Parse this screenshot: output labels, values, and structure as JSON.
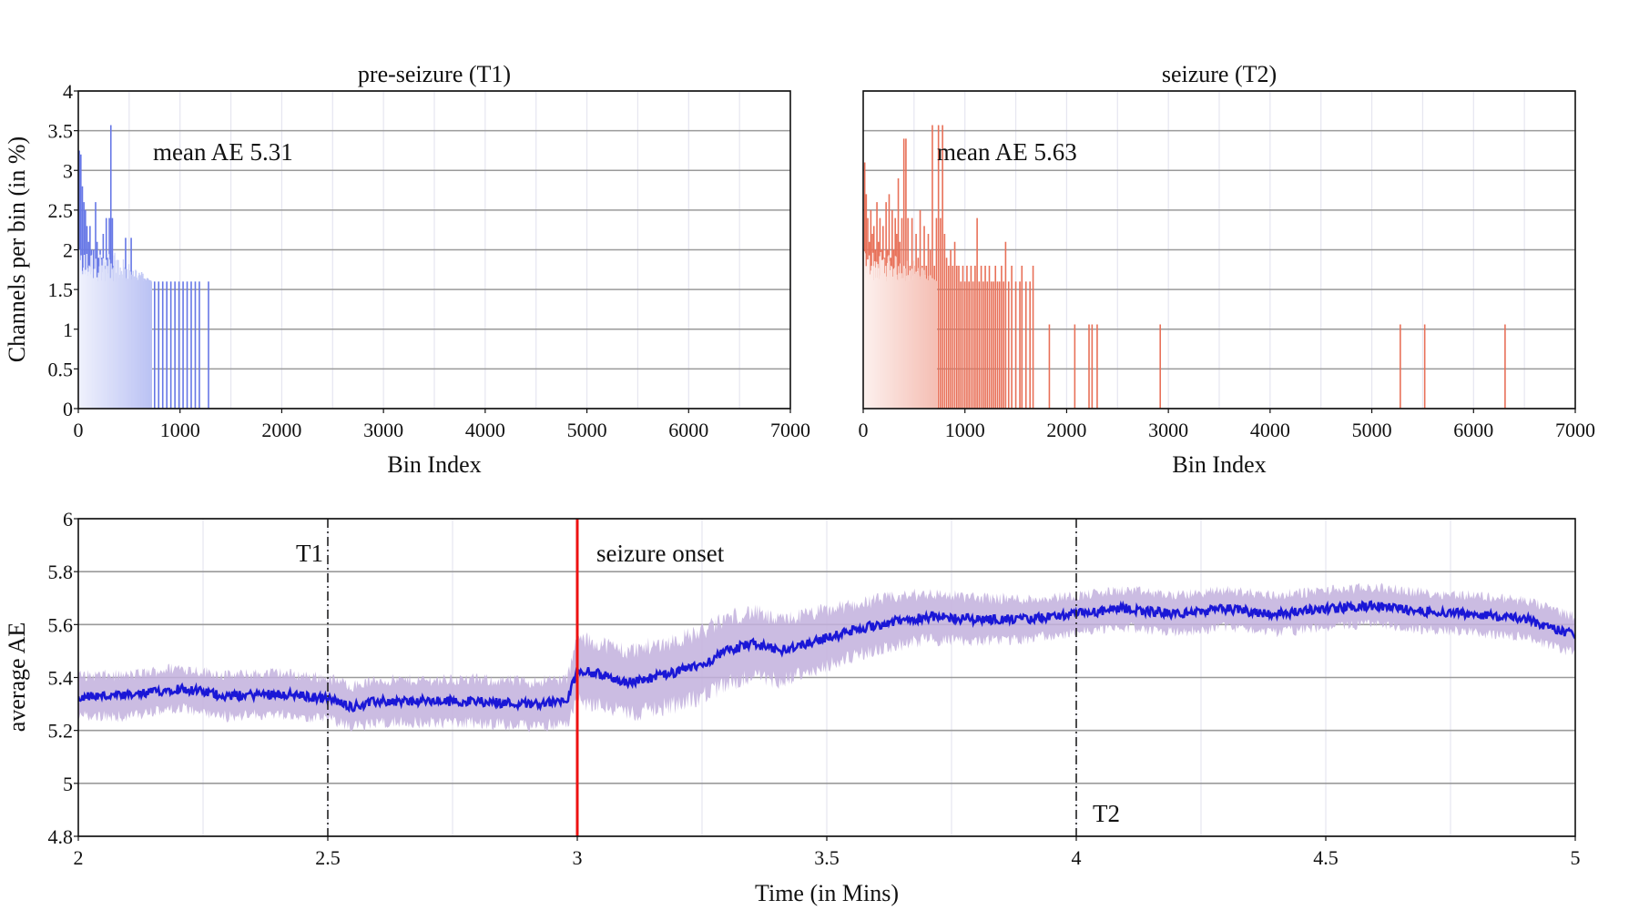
{
  "chart_data": [
    {
      "type": "bar",
      "title": "pre-seizure (T1)",
      "xlabel": "Bin Index",
      "ylabel": "Channels per bin (in %)",
      "xlim": [
        0,
        7000
      ],
      "ylim": [
        0,
        4
      ],
      "xticks": [
        0,
        1000,
        2000,
        3000,
        4000,
        5000,
        6000,
        7000
      ],
      "yticks": [
        0,
        0.5,
        1,
        1.5,
        2,
        2.5,
        3,
        3.5,
        4
      ],
      "annotation": "mean AE 5.31",
      "grid": true,
      "color": "#6677e6",
      "bins": [
        [
          10,
          3.25
        ],
        [
          25,
          3.2
        ],
        [
          40,
          2.8
        ],
        [
          55,
          2.6
        ],
        [
          70,
          2.5
        ],
        [
          85,
          2.3
        ],
        [
          100,
          2.1
        ],
        [
          115,
          2.3
        ],
        [
          130,
          2.0
        ],
        [
          150,
          2.0
        ],
        [
          170,
          2.6
        ],
        [
          185,
          2.1
        ],
        [
          200,
          1.9
        ],
        [
          215,
          2.0
        ],
        [
          230,
          1.9
        ],
        [
          245,
          2.2
        ],
        [
          260,
          1.8
        ],
        [
          275,
          2.4
        ],
        [
          290,
          1.9
        ],
        [
          305,
          2.4
        ],
        [
          320,
          3.57
        ],
        [
          335,
          2.4
        ],
        [
          350,
          1.8
        ],
        [
          370,
          1.7
        ],
        [
          390,
          1.7
        ],
        [
          410,
          1.6
        ],
        [
          430,
          1.6
        ],
        [
          450,
          1.6
        ],
        [
          465,
          2.15
        ],
        [
          480,
          1.6
        ],
        [
          500,
          1.6
        ],
        [
          520,
          2.15
        ],
        [
          540,
          1.6
        ],
        [
          560,
          1.6
        ],
        [
          580,
          1.6
        ],
        [
          600,
          1.6
        ],
        [
          620,
          1.6
        ],
        [
          650,
          1.6
        ],
        [
          680,
          1.6
        ],
        [
          710,
          1.6
        ],
        [
          750,
          1.6
        ],
        [
          790,
          1.6
        ],
        [
          830,
          1.6
        ],
        [
          870,
          1.6
        ],
        [
          910,
          1.6
        ],
        [
          950,
          1.6
        ],
        [
          990,
          1.6
        ],
        [
          1030,
          1.6
        ],
        [
          1070,
          1.6
        ],
        [
          1110,
          1.6
        ],
        [
          1150,
          1.6
        ],
        [
          1190,
          1.6
        ],
        [
          1280,
          1.6
        ]
      ]
    },
    {
      "type": "bar",
      "title": "seizure (T2)",
      "xlabel": "Bin Index",
      "xlim": [
        0,
        7000
      ],
      "ylim": [
        0,
        4
      ],
      "xticks": [
        0,
        1000,
        2000,
        3000,
        4000,
        5000,
        6000,
        7000
      ],
      "annotation": "mean AE 5.63",
      "grid": true,
      "color": "#e87058",
      "bins": [
        [
          15,
          3.1
        ],
        [
          30,
          2.7
        ],
        [
          45,
          2.4
        ],
        [
          60,
          2.1
        ],
        [
          75,
          2.5
        ],
        [
          90,
          2.2
        ],
        [
          105,
          2.3
        ],
        [
          120,
          2.0
        ],
        [
          135,
          2.6
        ],
        [
          150,
          2.1
        ],
        [
          165,
          2.4
        ],
        [
          180,
          2.0
        ],
        [
          195,
          2.3
        ],
        [
          210,
          1.9
        ],
        [
          225,
          2.6
        ],
        [
          240,
          2.0
        ],
        [
          255,
          2.7
        ],
        [
          270,
          1.9
        ],
        [
          285,
          2.5
        ],
        [
          300,
          2.0
        ],
        [
          315,
          2.4
        ],
        [
          330,
          2.2
        ],
        [
          345,
          2.9
        ],
        [
          360,
          2.1
        ],
        [
          380,
          2.4
        ],
        [
          400,
          3.4
        ],
        [
          420,
          3.4
        ],
        [
          440,
          2.4
        ],
        [
          460,
          1.8
        ],
        [
          480,
          2.4
        ],
        [
          500,
          1.8
        ],
        [
          520,
          2.2
        ],
        [
          540,
          1.9
        ],
        [
          560,
          2.5
        ],
        [
          580,
          1.8
        ],
        [
          600,
          2.3
        ],
        [
          620,
          1.8
        ],
        [
          640,
          2.2
        ],
        [
          660,
          2.0
        ],
        [
          680,
          3.57
        ],
        [
          700,
          1.8
        ],
        [
          720,
          2.4
        ],
        [
          740,
          3.57
        ],
        [
          760,
          2.4
        ],
        [
          780,
          3.57
        ],
        [
          800,
          2.2
        ],
        [
          820,
          1.9
        ],
        [
          840,
          1.8
        ],
        [
          860,
          2.0
        ],
        [
          880,
          1.8
        ],
        [
          900,
          2.1
        ],
        [
          920,
          1.8
        ],
        [
          940,
          1.8
        ],
        [
          960,
          1.6
        ],
        [
          980,
          1.8
        ],
        [
          1000,
          1.6
        ],
        [
          1020,
          1.8
        ],
        [
          1040,
          1.6
        ],
        [
          1060,
          1.8
        ],
        [
          1080,
          1.6
        ],
        [
          1100,
          1.8
        ],
        [
          1120,
          2.4
        ],
        [
          1140,
          1.6
        ],
        [
          1160,
          1.8
        ],
        [
          1180,
          1.6
        ],
        [
          1200,
          1.8
        ],
        [
          1220,
          1.6
        ],
        [
          1240,
          1.8
        ],
        [
          1260,
          1.6
        ],
        [
          1280,
          1.6
        ],
        [
          1300,
          1.8
        ],
        [
          1320,
          1.6
        ],
        [
          1340,
          1.6
        ],
        [
          1360,
          1.8
        ],
        [
          1380,
          1.6
        ],
        [
          1400,
          2.1
        ],
        [
          1430,
          1.6
        ],
        [
          1460,
          1.8
        ],
        [
          1500,
          1.6
        ],
        [
          1540,
          1.6
        ],
        [
          1560,
          1.8
        ],
        [
          1600,
          1.6
        ],
        [
          1640,
          1.6
        ],
        [
          1670,
          1.8
        ],
        [
          1830,
          1.06
        ],
        [
          2080,
          1.06
        ],
        [
          2220,
          1.06
        ],
        [
          2250,
          1.06
        ],
        [
          2300,
          1.06
        ],
        [
          2920,
          1.06
        ],
        [
          5280,
          1.06
        ],
        [
          5520,
          1.06
        ],
        [
          6310,
          1.06
        ]
      ]
    },
    {
      "type": "line",
      "xlabel": "Time (in Mins)",
      "ylabel": "average AE",
      "xlim": [
        2,
        5
      ],
      "ylim": [
        4.8,
        6
      ],
      "xticks": [
        2,
        2.5,
        3,
        3.5,
        4,
        4.5,
        5
      ],
      "yticks": [
        4.8,
        5,
        5.2,
        5.4,
        5.6,
        5.8,
        6
      ],
      "grid": true,
      "series_color": "#1a17d6",
      "band_color": "#c2b0dd",
      "trend": [
        [
          2.0,
          5.33
        ],
        [
          2.1,
          5.33
        ],
        [
          2.2,
          5.36
        ],
        [
          2.3,
          5.33
        ],
        [
          2.4,
          5.34
        ],
        [
          2.5,
          5.32
        ],
        [
          2.55,
          5.29
        ],
        [
          2.6,
          5.31
        ],
        [
          2.7,
          5.31
        ],
        [
          2.8,
          5.31
        ],
        [
          2.9,
          5.3
        ],
        [
          2.98,
          5.31
        ],
        [
          3.0,
          5.43
        ],
        [
          3.05,
          5.41
        ],
        [
          3.1,
          5.38
        ],
        [
          3.2,
          5.42
        ],
        [
          3.25,
          5.45
        ],
        [
          3.3,
          5.5
        ],
        [
          3.35,
          5.53
        ],
        [
          3.4,
          5.5
        ],
        [
          3.5,
          5.55
        ],
        [
          3.6,
          5.6
        ],
        [
          3.7,
          5.63
        ],
        [
          3.8,
          5.62
        ],
        [
          3.9,
          5.62
        ],
        [
          4.0,
          5.64
        ],
        [
          4.1,
          5.66
        ],
        [
          4.2,
          5.64
        ],
        [
          4.3,
          5.66
        ],
        [
          4.4,
          5.64
        ],
        [
          4.5,
          5.66
        ],
        [
          4.6,
          5.67
        ],
        [
          4.7,
          5.65
        ],
        [
          4.8,
          5.64
        ],
        [
          4.9,
          5.62
        ],
        [
          5.0,
          5.56
        ]
      ],
      "band_halfwidth": [
        [
          2.0,
          0.1
        ],
        [
          2.5,
          0.1
        ],
        [
          2.98,
          0.11
        ],
        [
          3.0,
          0.15
        ],
        [
          3.3,
          0.16
        ],
        [
          3.6,
          0.12
        ],
        [
          4.0,
          0.09
        ],
        [
          4.5,
          0.09
        ],
        [
          5.0,
          0.09
        ]
      ],
      "annotations": [
        {
          "label": "T1",
          "x": 2.5,
          "style": "dashdot",
          "color": "#222222"
        },
        {
          "label": "seizure onset",
          "x": 3.0,
          "style": "solid",
          "color": "#ee1111"
        },
        {
          "label": "T2",
          "x": 4.0,
          "style": "dashdot",
          "color": "#222222"
        }
      ]
    }
  ]
}
